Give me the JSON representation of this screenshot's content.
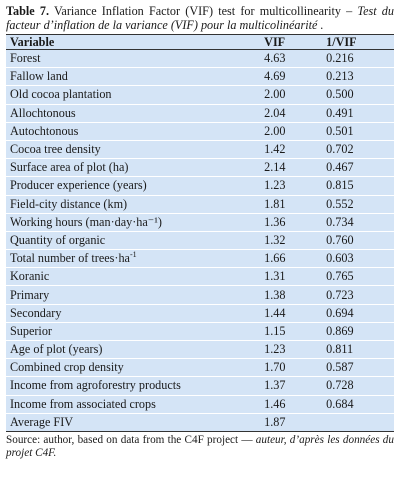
{
  "caption": {
    "label": "Table 7.",
    "title_en": " Variance Inflation Factor (VIF) test for multicollinearity –",
    "title_fr": "Test du facteur d’inflation de la variance (VIF) pour la multicolinéarité ."
  },
  "table": {
    "headers": [
      "Variable",
      "VIF",
      "1/VIF"
    ],
    "rows": [
      {
        "variable": "Forest",
        "vif": "4.63",
        "inv_vif": "0.216"
      },
      {
        "variable": "Fallow land",
        "vif": "4.69",
        "inv_vif": "0.213"
      },
      {
        "variable": "Old cocoa plantation",
        "vif": "2.00",
        "inv_vif": "0.500"
      },
      {
        "variable": "Allochtonous",
        "vif": "2.04",
        "inv_vif": "0.491"
      },
      {
        "variable": "Autochtonous",
        "vif": "2.00",
        "inv_vif": "0.501"
      },
      {
        "variable": "Cocoa tree density",
        "vif": "1.42",
        "inv_vif": "0.702"
      },
      {
        "variable": "Surface area of plot (ha)",
        "vif": "2.14",
        "inv_vif": "0.467"
      },
      {
        "variable": "Producer experience (years)",
        "vif": "1.23",
        "inv_vif": "0.815"
      },
      {
        "variable": "Field-city distance (km)",
        "vif": "1.81",
        "inv_vif": "0.552"
      },
      {
        "variable": "Working hours (man·day·ha⁻¹)",
        "vif": "1.36",
        "inv_vif": "0.734"
      },
      {
        "variable": "Quantity of organic",
        "vif": "1.32",
        "inv_vif": "0.760"
      },
      {
        "variable": "Total number of trees·ha",
        "sup": "-1",
        "vif": "1.66",
        "inv_vif": "0.603"
      },
      {
        "variable": "Koranic",
        "vif": "1.31",
        "inv_vif": "0.765"
      },
      {
        "variable": "Primary",
        "vif": "1.38",
        "inv_vif": "0.723"
      },
      {
        "variable": "Secondary",
        "vif": "1.44",
        "inv_vif": "0.694"
      },
      {
        "variable": "Superior",
        "vif": "1.15",
        "inv_vif": "0.869"
      },
      {
        "variable": "Age of plot (years)",
        "vif": "1.23",
        "inv_vif": "0.811"
      },
      {
        "variable": "Combined crop density",
        "vif": "1.70",
        "inv_vif": "0.587"
      },
      {
        "variable": "Income from agroforestry products",
        "vif": "1.37",
        "inv_vif": "0.728"
      },
      {
        "variable": "Income from associated crops",
        "vif": "1.46",
        "inv_vif": "0.684"
      },
      {
        "variable": "Average FIV",
        "vif": "1.87",
        "inv_vif": ""
      }
    ]
  },
  "source": {
    "text_en": "Source: author, based on data from the C4F project — ",
    "text_fr": "auteur, d’après les données du projet C4F."
  }
}
